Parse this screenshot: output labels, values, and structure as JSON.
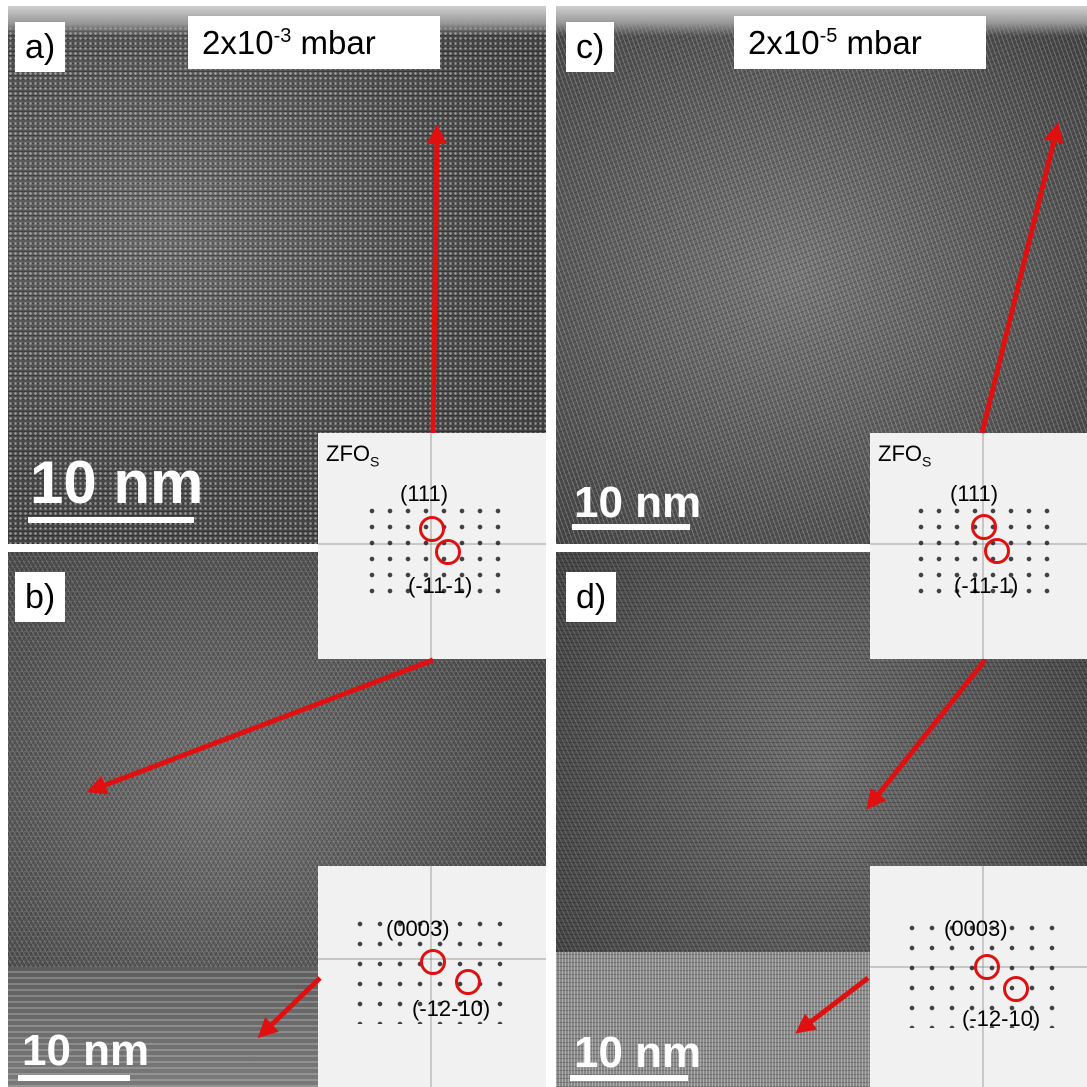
{
  "panels": {
    "a": {
      "letter": "a)",
      "pressure_base": "2x10",
      "pressure_exp": "-3",
      "pressure_unit": " mbar",
      "scale_label": "10 nm"
    },
    "b": {
      "letter": "b)",
      "scale_label": "10 nm"
    },
    "c": {
      "letter": "c)",
      "pressure_base": "2x10",
      "pressure_exp": "-5",
      "pressure_unit": " mbar",
      "scale_label": "10 nm"
    },
    "d": {
      "letter": "d)",
      "scale_label": "10 nm"
    }
  },
  "fft_insets": {
    "left_top": {
      "title": "ZFO",
      "title_sub": "S",
      "spot1": "(111)",
      "spot2": "(-11-1)"
    },
    "left_bottom": {
      "spot1": "(0003)",
      "spot2": "(-12-10)"
    },
    "right_top": {
      "title": "ZFO",
      "title_sub": "S",
      "spot1": "(111)",
      "spot2": "(-11-1)"
    },
    "right_bottom": {
      "spot1": "(0003)",
      "spot2": "(-12-10)"
    }
  },
  "colors": {
    "arrow": "#e01010",
    "ring": "#e01010",
    "label_bg": "#ffffff",
    "scale_bar": "#ffffff"
  }
}
